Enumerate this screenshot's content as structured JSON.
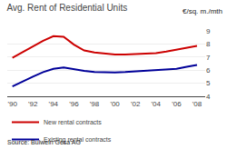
{
  "chart_data": {
    "type": "line",
    "title": "Avg. Rent of Residential Units",
    "subtitle": "€/sq. m./mth",
    "annotations": [
      "Source: Bulwein Gesa AG"
    ],
    "x": [
      1990,
      1991,
      1992,
      1993,
      1994,
      1995,
      1996,
      1997,
      1998,
      1999,
      2000,
      2001,
      2002,
      2003,
      2004,
      2005,
      2006,
      2007,
      2008
    ],
    "series": [
      {
        "name": "New rental contracts",
        "color": "#cc0000",
        "values": [
          6.95,
          7.4,
          7.85,
          8.25,
          8.6,
          8.55,
          7.95,
          7.5,
          7.35,
          7.25,
          7.2,
          7.2,
          7.25,
          7.27,
          7.3,
          7.42,
          7.55,
          7.68,
          7.85
        ]
      },
      {
        "name": "Existing rental contracts",
        "color": "#000099",
        "values": [
          4.75,
          5.15,
          5.5,
          5.85,
          6.1,
          6.2,
          6.05,
          5.95,
          5.85,
          5.82,
          5.82,
          5.85,
          5.9,
          5.92,
          5.95,
          6.0,
          6.1,
          6.25,
          6.4
        ]
      }
    ],
    "xlim": [
      1989.5,
      2008.8
    ],
    "xticks": [
      {
        "value": 1990,
        "label": "'90"
      },
      {
        "value": 1992,
        "label": "'92"
      },
      {
        "value": 1994,
        "label": "'94"
      },
      {
        "value": 1996,
        "label": "'96"
      },
      {
        "value": 1998,
        "label": "'98"
      },
      {
        "value": 2000,
        "label": "'00"
      },
      {
        "value": 2002,
        "label": "'02"
      },
      {
        "value": 2004,
        "label": "'04"
      },
      {
        "value": 2006,
        "label": "'06"
      },
      {
        "value": 2008,
        "label": "'08"
      }
    ],
    "ylim": [
      4,
      9
    ],
    "yticks": [
      4,
      5,
      6,
      7,
      8,
      9
    ],
    "grid": true,
    "legend": "bottom"
  }
}
